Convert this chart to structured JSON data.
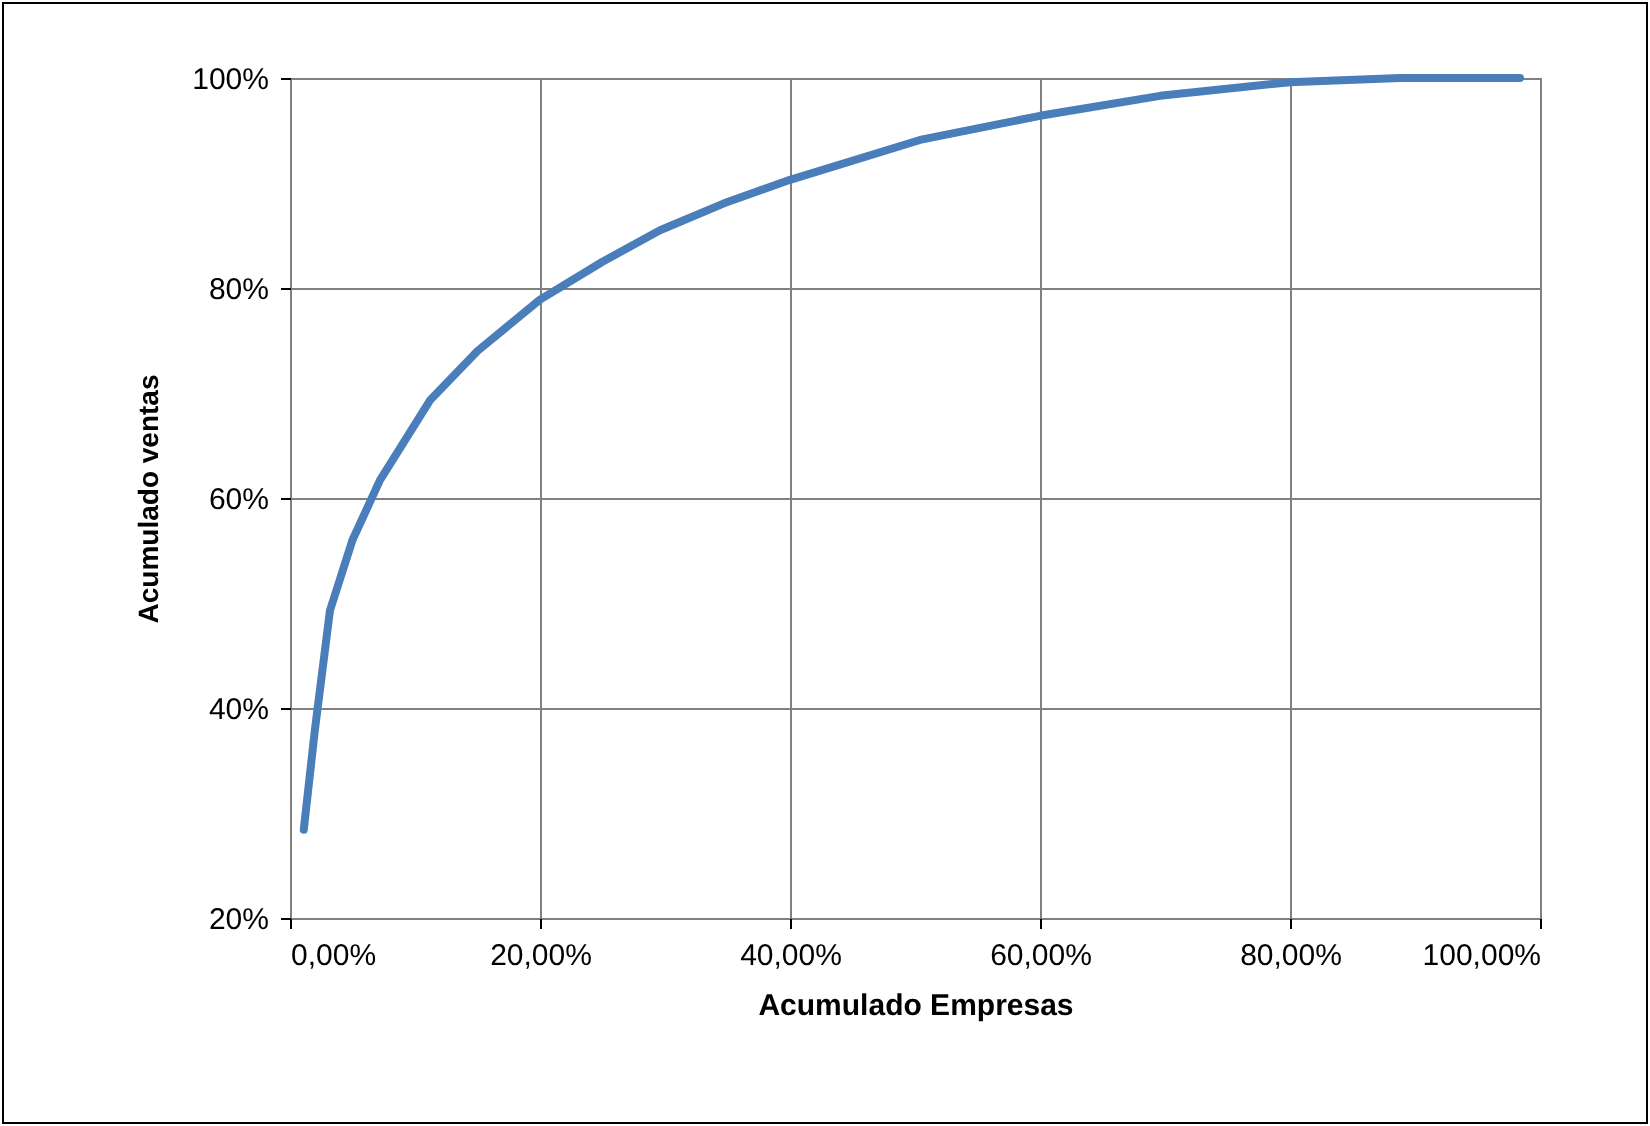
{
  "chart_data": {
    "type": "line",
    "xlabel": "Acumulado Empresas",
    "ylabel": "Acumulado ventas",
    "x": [
      1.1,
      2,
      3.2,
      5,
      7.2,
      11.2,
      15,
      20,
      25,
      29.6,
      35,
      40,
      50.4,
      60,
      69.6,
      80,
      88.8,
      98.4
    ],
    "series": [
      {
        "color": "#4a7ebb",
        "values": [
          28.4,
          38,
          49.3,
          56,
          61.7,
          69.3,
          74,
          78.9,
          82.5,
          85.5,
          88.2,
          90.3,
          94.1,
          96.4,
          98.3,
          99.6,
          100,
          100
        ]
      }
    ],
    "xlim": [
      0,
      100
    ],
    "ylim": [
      20,
      100
    ],
    "xticks": [
      {
        "value": 0,
        "label": "0,00%"
      },
      {
        "value": 20,
        "label": "20,00%"
      },
      {
        "value": 40,
        "label": "40,00%"
      },
      {
        "value": 60,
        "label": "60,00%"
      },
      {
        "value": 80,
        "label": "80,00%"
      },
      {
        "value": 100,
        "label": "100,00%"
      }
    ],
    "yticks": [
      {
        "value": 20,
        "label": "20%"
      },
      {
        "value": 40,
        "label": "40%"
      },
      {
        "value": 60,
        "label": "60%"
      },
      {
        "value": 80,
        "label": "80%"
      },
      {
        "value": 100,
        "label": "100%"
      }
    ],
    "grid": true,
    "marker": "none",
    "line_style": "solid"
  }
}
